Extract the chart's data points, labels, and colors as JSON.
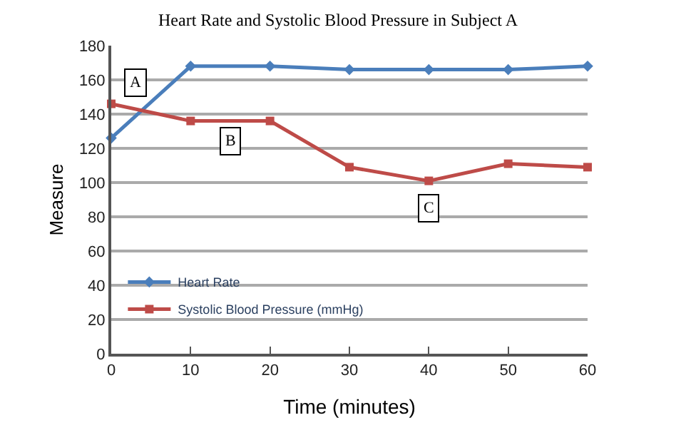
{
  "chart_data": {
    "type": "line",
    "title": "Heart Rate and Systolic Blood Pressure in Subject A",
    "xlabel": "Time (minutes)",
    "ylabel": "Measure",
    "x": [
      0,
      10,
      20,
      30,
      40,
      50,
      60
    ],
    "series": [
      {
        "name": "Heart Rate",
        "color": "#4a7ebb",
        "marker": "diamond",
        "values": [
          126,
          168,
          168,
          166,
          166,
          166,
          168
        ]
      },
      {
        "name": "Systolic Blood Pressure (mmHg)",
        "color": "#be4b48",
        "marker": "square",
        "values": [
          146,
          136,
          136,
          109,
          101,
          111,
          109
        ]
      }
    ],
    "annotations": [
      {
        "text": "A",
        "x": 3,
        "y": 158
      },
      {
        "text": "B",
        "x": 15,
        "y": 124
      },
      {
        "text": "C",
        "x": 40,
        "y": 85
      }
    ],
    "xlim": [
      0,
      60
    ],
    "xticks": [
      0,
      10,
      20,
      30,
      40,
      50,
      60
    ],
    "ylim": [
      0,
      180
    ],
    "yticks": [
      0,
      20,
      40,
      60,
      80,
      100,
      120,
      140,
      160,
      180
    ],
    "grid": "y",
    "legend": "bottom left",
    "line_style": "solid"
  }
}
